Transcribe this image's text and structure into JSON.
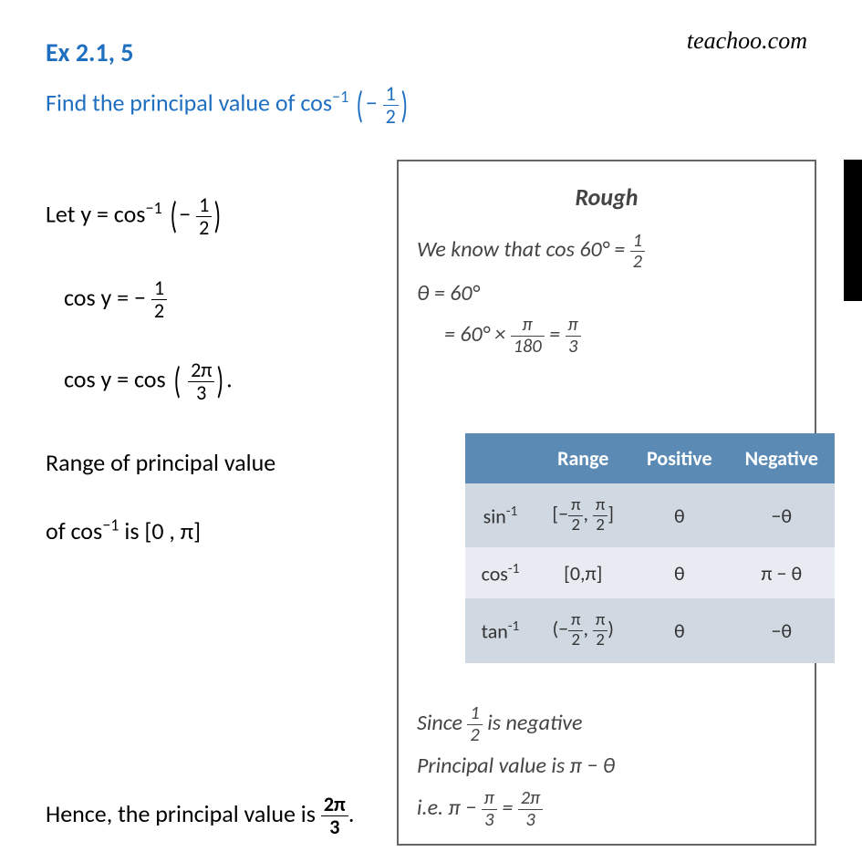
{
  "heading": {
    "text": "Ex 2.1, 5",
    "color": "#1f6fc0"
  },
  "brand": "teachoo.com",
  "problem": {
    "prefix": "Find the principal value of  cos",
    "sup": "−1",
    "arg_num": "1",
    "arg_den": "2",
    "color": "#1f6fc0"
  },
  "work": {
    "line1_prefix": "Let y = cos",
    "line1_sup": "−1",
    "line1_num": "1",
    "line1_den": "2",
    "line2_prefix": "cos y = −",
    "line2_num": "1",
    "line2_den": "2",
    "line3_prefix": "cos y = cos ",
    "line3_num": "2π",
    "line3_den": "3",
    "line4": "Range of principal value",
    "line5_prefix": "of cos",
    "line5_sup": "−1",
    "line5_suffix": " is [0 , π]"
  },
  "conclusion": {
    "prefix": "Hence, the principal value is ",
    "num": "2π",
    "den": "3",
    "suffix": "."
  },
  "rough": {
    "title": "Rough",
    "l1_prefix": "We know that cos 60° = ",
    "l1_num": "1",
    "l1_den": "2",
    "l2": "θ = 60°",
    "l3_prefix": "= 60° × ",
    "l3_num1": "π",
    "l3_den1": "180",
    "l3_eq": " = ",
    "l3_num2": "π",
    "l3_den2": "3",
    "b1_prefix": "Since ",
    "b1_num": "1",
    "b1_den": "2",
    "b1_suffix": " is negative",
    "b2": "Principal value is π − θ",
    "b3_prefix": "i.e. π − ",
    "b3_num1": "π",
    "b3_den1": "3",
    "b3_eq": " = ",
    "b3_num2": "2π",
    "b3_den2": "3"
  },
  "table": {
    "header_bg": "#5b8bb5",
    "row_bg1": "#d0d8e2",
    "row_bg2": "#e8ecf2",
    "headers": [
      "",
      "Range",
      "Positive",
      "Negative"
    ],
    "rows": [
      {
        "fn": "sin",
        "sup": "-1",
        "range_open": "[−",
        "range_n1": "π",
        "range_d1": "2",
        "range_sep": ", ",
        "range_n2": "π",
        "range_d2": "2",
        "range_close": "]",
        "pos": "θ",
        "neg": "−θ"
      },
      {
        "fn": "cos",
        "sup": "-1",
        "range": "[0,π]",
        "pos": "θ",
        "neg": "π − θ"
      },
      {
        "fn": "tan",
        "sup": "-1",
        "range_open": "(−",
        "range_n1": "π",
        "range_d1": "2",
        "range_sep": ", ",
        "range_n2": "π",
        "range_d2": "2",
        "range_close": ")",
        "pos": "θ",
        "neg": "−θ"
      }
    ]
  },
  "style": {
    "heading_fontsize": 28,
    "body_fontsize": 26
  }
}
